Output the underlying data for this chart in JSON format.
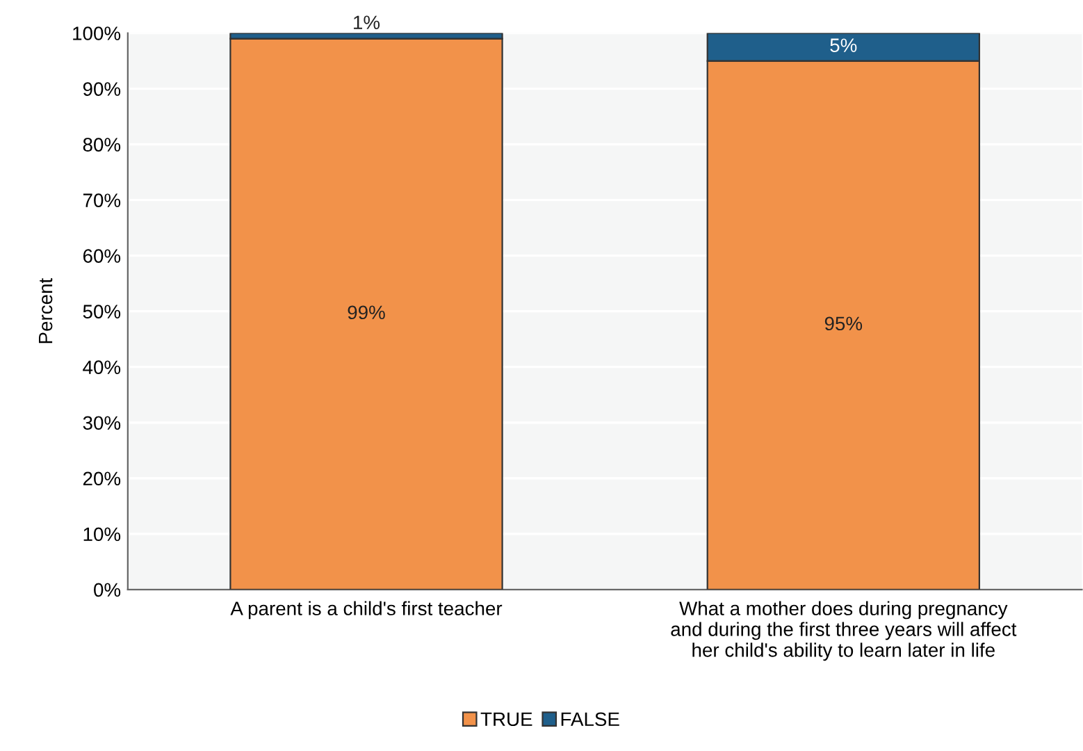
{
  "chart_data": {
    "type": "bar",
    "stacked": true,
    "ylabel": "Percent",
    "categories": [
      "A parent is a child's first teacher",
      "What a mother does during pregnancy\nand during the first three years will affect\nher child's ability to learn later in life"
    ],
    "series": [
      {
        "name": "TRUE",
        "color": "#f2924a",
        "values": [
          99,
          95
        ],
        "value_labels": [
          "99%",
          "95%"
        ]
      },
      {
        "name": "FALSE",
        "color": "#1f5f8b",
        "values": [
          1,
          5
        ],
        "value_labels": [
          "1%",
          "5%"
        ]
      }
    ],
    "ylim": [
      0,
      100
    ],
    "yticks": [
      {
        "value": 0,
        "label": "0%"
      },
      {
        "value": 10,
        "label": "10%"
      },
      {
        "value": 20,
        "label": "20%"
      },
      {
        "value": 30,
        "label": "30%"
      },
      {
        "value": 40,
        "label": "40%"
      },
      {
        "value": 50,
        "label": "50%"
      },
      {
        "value": 60,
        "label": "60%"
      },
      {
        "value": 70,
        "label": "70%"
      },
      {
        "value": 80,
        "label": "80%"
      },
      {
        "value": 90,
        "label": "90%"
      },
      {
        "value": 100,
        "label": "100%"
      }
    ],
    "grid": "y",
    "legend": "bottom"
  }
}
